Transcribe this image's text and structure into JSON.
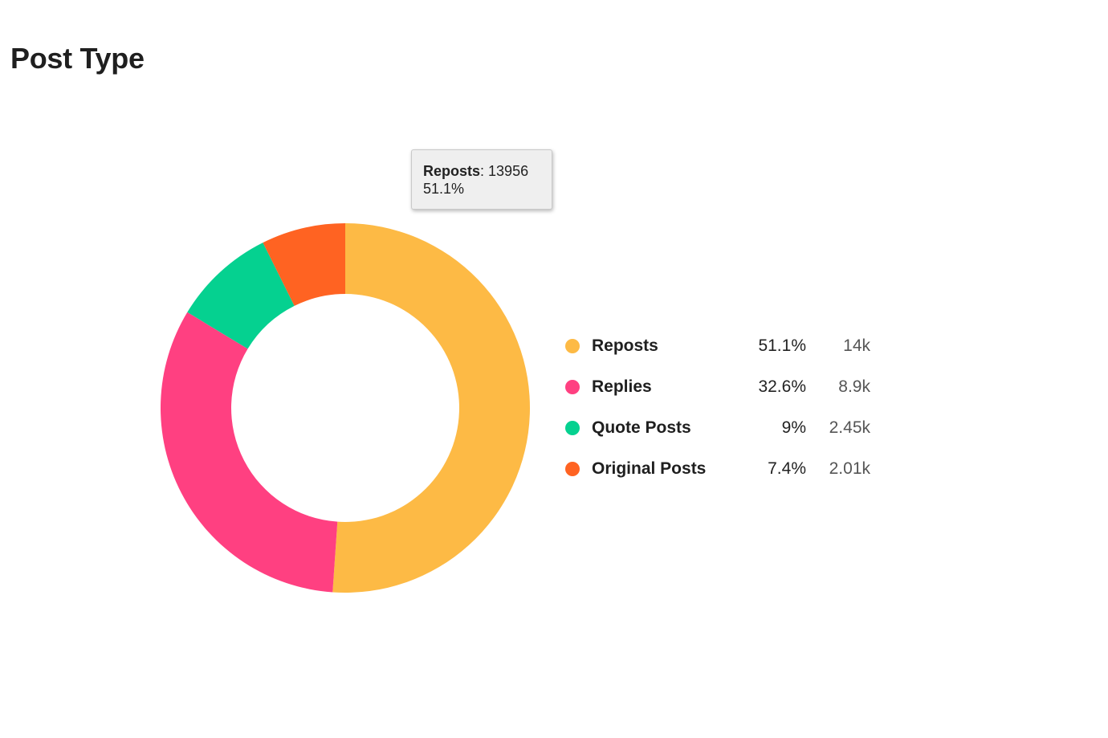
{
  "page": {
    "title": "Post Type"
  },
  "tooltip": {
    "label": "Reposts",
    "value": "13956",
    "percent": "51.1%"
  },
  "chart_data": {
    "type": "pie",
    "variant": "donut",
    "title": "Post Type",
    "legend_position": "right",
    "series": [
      {
        "name": "Reposts",
        "value": 13956,
        "percent_label": "51.1%",
        "count_label": "14k",
        "color": "#FDBA45"
      },
      {
        "name": "Replies",
        "value": 8900,
        "percent_label": "32.6%",
        "count_label": "8.9k",
        "color": "#FF4081"
      },
      {
        "name": "Quote Posts",
        "value": 2450,
        "percent_label": "9%",
        "count_label": "2.45k",
        "color": "#05D190"
      },
      {
        "name": "Original Posts",
        "value": 2010,
        "percent_label": "7.4%",
        "count_label": "2.01k",
        "color": "#FF6322"
      }
    ]
  }
}
